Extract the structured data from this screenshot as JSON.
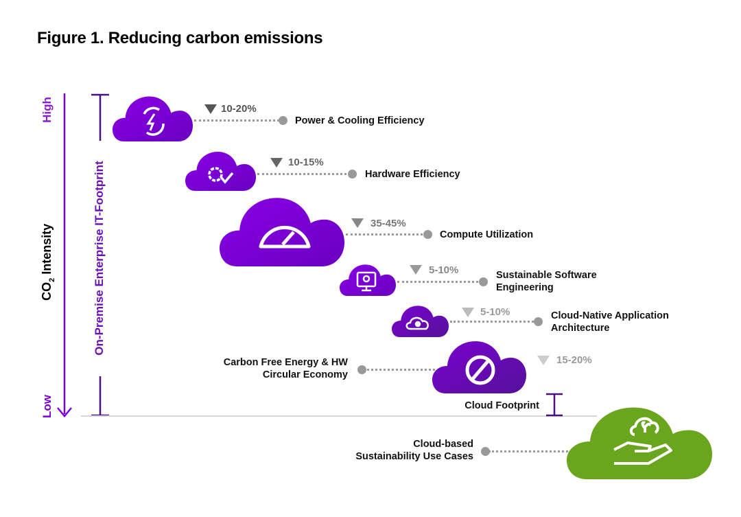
{
  "title": "Figure 1. Reducing carbon emissions",
  "axis": {
    "high": "High",
    "low": "Low",
    "label_prefix": "CO",
    "label_sub": "2",
    "label_suffix": " Intensity",
    "footprint_label": "On-Premise Enterprise IT-Footprint"
  },
  "colors": {
    "purple": "#7b00d4",
    "purple_dark": "#5a0f9e",
    "green": "#6aa51e",
    "grey": "#9a9a9a"
  },
  "items": [
    {
      "label": "Power & Cooling Efficiency",
      "reduction": "10-20%",
      "icon": "power-cycle-icon"
    },
    {
      "label": "Hardware Efficiency",
      "reduction": "10-15%",
      "icon": "gear-check-icon"
    },
    {
      "label": "Compute Utilization",
      "reduction": "35-45%",
      "icon": "gauge-icon"
    },
    {
      "label_line1": "Sustainable Software",
      "label_line2": "Engineering",
      "reduction": "5-10%",
      "icon": "monitor-head-gear-icon"
    },
    {
      "label_line1": "Cloud-Native Application",
      "label_line2": "Architecture",
      "reduction": "5-10%",
      "icon": "cloud-gear-icon"
    },
    {
      "label_line1": "Carbon Free Energy & HW",
      "label_line2": "Circular Economy",
      "reduction": "15-20%",
      "icon": "prohibited-icon"
    }
  ],
  "cloud_footprint": "Cloud Footprint",
  "sustainability": {
    "label_line1": "Cloud-based",
    "label_line2": "Sustainability Use Cases",
    "icon": "hand-cloud-plant-icon"
  }
}
